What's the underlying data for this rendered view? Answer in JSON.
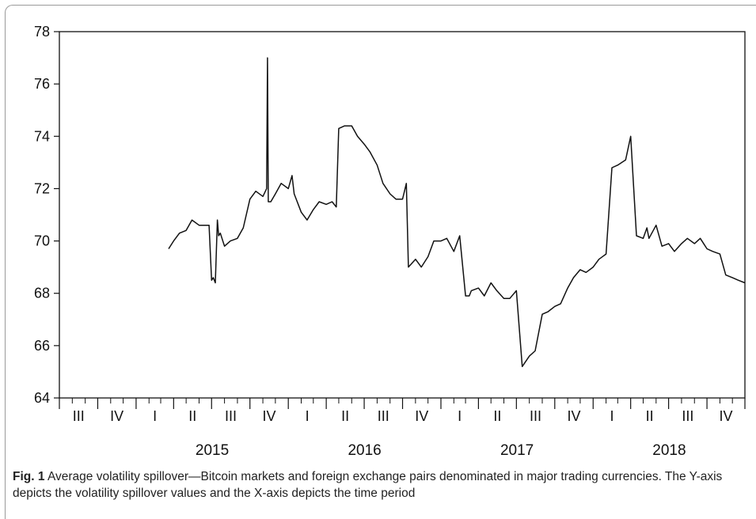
{
  "chart_data": {
    "type": "line",
    "title": "",
    "xlabel": "",
    "ylabel": "",
    "ylim": [
      64,
      78
    ],
    "yticks": [
      64,
      66,
      68,
      70,
      72,
      74,
      76,
      78
    ],
    "xlim": [
      "2014-07-01",
      "2018-12-31"
    ],
    "quarter_ticks": [
      "III",
      "IV",
      "I",
      "II",
      "III",
      "IV",
      "I",
      "II",
      "III",
      "IV",
      "I",
      "II",
      "III",
      "IV",
      "I",
      "II",
      "III",
      "IV"
    ],
    "year_labels": [
      "2015",
      "2016",
      "2017",
      "2018"
    ],
    "grid": false,
    "legend": false,
    "series": [
      {
        "x": [
          "2015-03-20",
          "2015-04-01",
          "2015-04-15",
          "2015-05-01",
          "2015-05-15",
          "2015-06-01",
          "2015-06-15",
          "2015-06-25",
          "2015-07-01",
          "2015-07-05",
          "2015-07-10",
          "2015-07-15",
          "2015-07-18",
          "2015-07-22",
          "2015-08-01",
          "2015-08-15",
          "2015-09-01",
          "2015-09-15",
          "2015-10-01",
          "2015-10-15",
          "2015-11-01",
          "2015-11-10",
          "2015-11-12",
          "2015-11-14",
          "2015-11-20",
          "2015-12-01",
          "2015-12-15",
          "2016-01-01",
          "2016-01-10",
          "2016-01-15",
          "2016-02-01",
          "2016-02-15",
          "2016-03-01",
          "2016-03-15",
          "2016-04-01",
          "2016-04-15",
          "2016-04-25",
          "2016-05-01",
          "2016-05-15",
          "2016-06-01",
          "2016-06-15",
          "2016-07-01",
          "2016-07-15",
          "2016-08-01",
          "2016-08-15",
          "2016-09-01",
          "2016-09-15",
          "2016-10-01",
          "2016-10-10",
          "2016-10-15",
          "2016-11-01",
          "2016-11-15",
          "2016-12-01",
          "2016-12-15",
          "2017-01-01",
          "2017-01-15",
          "2017-02-01",
          "2017-02-15",
          "2017-03-01",
          "2017-03-10",
          "2017-03-15",
          "2017-04-01",
          "2017-04-15",
          "2017-05-01",
          "2017-05-15",
          "2017-06-01",
          "2017-06-15",
          "2017-07-01",
          "2017-07-15",
          "2017-08-01",
          "2017-08-15",
          "2017-09-01",
          "2017-09-15",
          "2017-10-01",
          "2017-10-15",
          "2017-11-01",
          "2017-11-15",
          "2017-12-01",
          "2017-12-15",
          "2018-01-01",
          "2018-01-15",
          "2018-02-01",
          "2018-02-15",
          "2018-03-01",
          "2018-03-20",
          "2018-04-01",
          "2018-04-15",
          "2018-05-01",
          "2018-05-10",
          "2018-05-15",
          "2018-06-01",
          "2018-06-15",
          "2018-07-01",
          "2018-07-15",
          "2018-08-01",
          "2018-08-15",
          "2018-09-01",
          "2018-09-15",
          "2018-10-01",
          "2018-10-15",
          "2018-11-01",
          "2018-11-15",
          "2018-12-01",
          "2018-12-15",
          "2018-12-31"
        ],
        "y": [
          69.7,
          70.0,
          70.3,
          70.4,
          70.8,
          70.6,
          70.6,
          70.6,
          68.5,
          68.6,
          68.4,
          70.8,
          70.2,
          70.3,
          69.8,
          70.0,
          70.1,
          70.5,
          71.6,
          71.9,
          71.7,
          72.0,
          77.0,
          71.5,
          71.5,
          71.8,
          72.2,
          72.0,
          72.5,
          71.8,
          71.1,
          70.8,
          71.2,
          71.5,
          71.4,
          71.5,
          71.3,
          74.3,
          74.4,
          74.4,
          74.0,
          73.7,
          73.4,
          72.9,
          72.2,
          71.8,
          71.6,
          71.6,
          72.2,
          69.0,
          69.3,
          69.0,
          69.4,
          70.0,
          70.0,
          70.1,
          69.6,
          70.2,
          67.9,
          67.9,
          68.1,
          68.2,
          67.9,
          68.4,
          68.1,
          67.8,
          67.8,
          68.1,
          65.2,
          65.6,
          65.8,
          67.2,
          67.3,
          67.5,
          67.6,
          68.2,
          68.6,
          68.9,
          68.8,
          69.0,
          69.3,
          69.5,
          72.8,
          72.9,
          73.1,
          74.0,
          70.2,
          70.1,
          70.5,
          70.1,
          70.6,
          69.8,
          69.9,
          69.6,
          69.9,
          70.1,
          69.9,
          70.1,
          69.7,
          69.6,
          69.5,
          68.7,
          68.6,
          68.5,
          68.4
        ]
      }
    ]
  },
  "caption": {
    "fig_label": "Fig. 1",
    "text": "Average volatility spillover—Bitcoin markets and foreign exchange pairs denominated in major trading currencies. The Y-axis depicts the volatility spillover values and the X-axis depicts the time period"
  }
}
